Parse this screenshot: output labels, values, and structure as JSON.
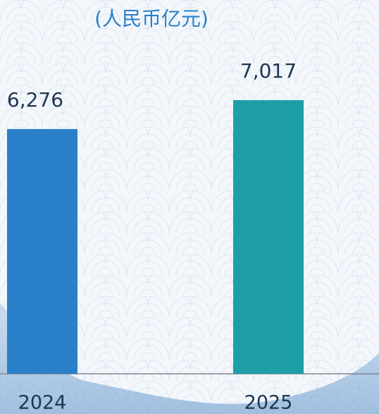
{
  "chart_data": {
    "type": "bar",
    "subtitle": "(人民币亿元)",
    "categories": [
      "2024",
      "2025"
    ],
    "values": [
      6276,
      7017
    ],
    "value_labels": [
      "6,276",
      "7,017"
    ],
    "colors": [
      "#2a7fc9",
      "#1e9fa8"
    ]
  }
}
